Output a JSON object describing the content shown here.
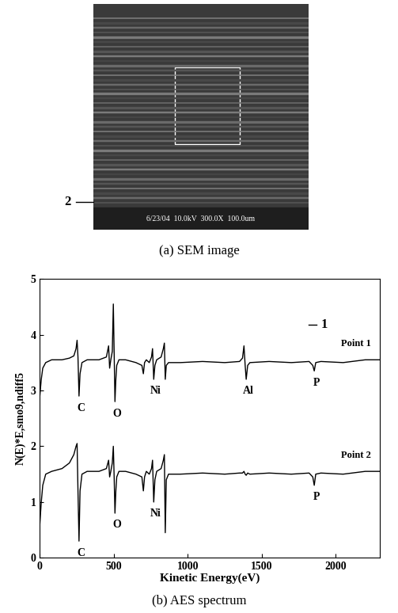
{
  "image": {
    "caption": "(a) SEM image",
    "markers": [
      "2",
      "1"
    ],
    "overlay_text": "6/23/04  10.0kV  300.0X  100.0um"
  },
  "chart_data": {
    "type": "line",
    "caption": "(b) AES spectrum",
    "x_label": "Kinetic Energy(eV)",
    "y_label": "N(E)*E,smo9,ndiff5",
    "x": [
      0,
      10,
      20,
      40,
      80,
      150,
      200,
      230,
      245,
      252,
      258,
      265,
      272,
      285,
      320,
      400,
      450,
      465,
      472,
      480,
      490,
      497,
      503,
      508,
      514,
      520,
      535,
      580,
      650,
      690,
      700,
      708,
      720,
      740,
      755,
      762,
      770,
      778,
      790,
      820,
      835,
      842,
      848,
      855,
      870,
      950,
      1100,
      1250,
      1350,
      1370,
      1380,
      1388,
      1395,
      1405,
      1420,
      1550,
      1700,
      1820,
      1845,
      1855,
      1865,
      1900,
      2050,
      2200,
      2300
    ],
    "series": [
      {
        "name": "Point 1",
        "color": "#000000",
        "values": [
          2.9,
          3.2,
          3.4,
          3.5,
          3.55,
          3.55,
          3.58,
          3.62,
          3.75,
          3.9,
          3.6,
          2.9,
          3.3,
          3.5,
          3.55,
          3.55,
          3.6,
          3.8,
          3.4,
          3.55,
          3.7,
          4.55,
          3.6,
          2.8,
          3.2,
          3.45,
          3.55,
          3.55,
          3.5,
          3.45,
          3.3,
          3.5,
          3.55,
          3.5,
          3.6,
          3.75,
          3.2,
          3.45,
          3.55,
          3.6,
          3.75,
          3.85,
          3.2,
          3.45,
          3.5,
          3.5,
          3.52,
          3.5,
          3.52,
          3.58,
          3.8,
          3.45,
          3.2,
          3.45,
          3.5,
          3.52,
          3.5,
          3.52,
          3.45,
          3.35,
          3.5,
          3.52,
          3.5,
          3.55,
          3.55
        ]
      },
      {
        "name": "Point 2",
        "color": "#000000",
        "values": [
          0.6,
          1.0,
          1.3,
          1.5,
          1.55,
          1.6,
          1.7,
          1.85,
          2.0,
          2.05,
          1.2,
          0.3,
          1.2,
          1.5,
          1.55,
          1.55,
          1.6,
          1.75,
          1.45,
          1.55,
          1.7,
          2.0,
          1.4,
          0.8,
          1.2,
          1.45,
          1.55,
          1.55,
          1.5,
          1.45,
          1.2,
          1.45,
          1.55,
          1.5,
          1.6,
          1.75,
          1.0,
          1.4,
          1.55,
          1.6,
          1.75,
          1.85,
          0.45,
          1.4,
          1.5,
          1.5,
          1.52,
          1.5,
          1.52,
          1.52,
          1.55,
          1.5,
          1.48,
          1.52,
          1.5,
          1.52,
          1.5,
          1.52,
          1.45,
          1.3,
          1.5,
          1.52,
          1.5,
          1.55,
          1.55
        ]
      }
    ],
    "annotations": [
      {
        "text": "C",
        "x": 265,
        "series": "Point 1"
      },
      {
        "text": "O",
        "x": 508,
        "series": "Point 1"
      },
      {
        "text": "Ni",
        "x": 770,
        "series": "Point 1"
      },
      {
        "text": "Al",
        "x": 1395,
        "series": "Point 1"
      },
      {
        "text": "P",
        "x": 1855,
        "series": "Point 1"
      },
      {
        "text": "C",
        "x": 265,
        "series": "Point 2"
      },
      {
        "text": "O",
        "x": 508,
        "series": "Point 2"
      },
      {
        "text": "Ni",
        "x": 770,
        "series": "Point 2"
      },
      {
        "text": "P",
        "x": 1855,
        "series": "Point 2"
      }
    ],
    "xlim": [
      0,
      2300
    ],
    "ylim": [
      0,
      5
    ],
    "xticks": [
      0,
      500,
      1000,
      1500,
      2000
    ],
    "yticks": [
      0,
      1,
      2,
      3,
      4,
      5
    ],
    "grid": false
  }
}
